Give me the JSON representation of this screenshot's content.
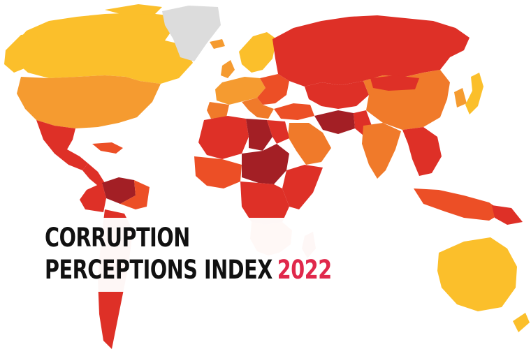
{
  "title": {
    "line1": "CORRUPTION",
    "line2": "PERCEPTIONS INDEX",
    "year": "2022"
  },
  "colors": {
    "very_high": "#a31f25",
    "high": "#de3027",
    "mid_high": "#ec4f26",
    "mid": "#f07a2a",
    "mid_low": "#f59b30",
    "low": "#fbbf2b",
    "no_data": "#dcdcdc",
    "year_accent": "#e0284b"
  }
}
